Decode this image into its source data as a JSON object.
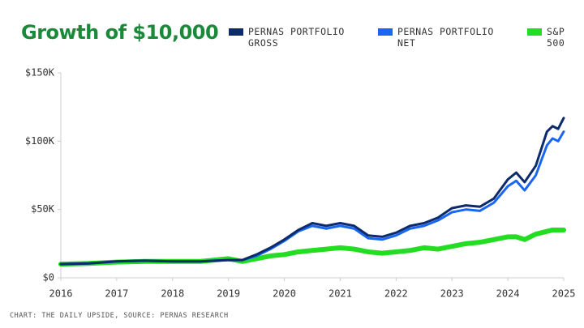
{
  "chart_data": {
    "type": "line",
    "title": "Growth of $10,000",
    "source": "CHART: THE DAILY UPSIDE, SOURCE: PERNAS RESEARCH",
    "x": [
      2016.0,
      2016.5,
      2017.0,
      2017.5,
      2018.0,
      2018.5,
      2019.0,
      2019.25,
      2019.5,
      2019.75,
      2020.0,
      2020.25,
      2020.5,
      2020.75,
      2021.0,
      2021.25,
      2021.5,
      2021.75,
      2022.0,
      2022.25,
      2022.5,
      2022.75,
      2023.0,
      2023.25,
      2023.5,
      2023.75,
      2024.0,
      2024.15,
      2024.3,
      2024.5,
      2024.7,
      2024.8,
      2024.9,
      2025.0
    ],
    "series": [
      {
        "name": "PERNAS PORTFOLIO GROSS",
        "color": "#0d2a6b",
        "values": [
          10000,
          10500,
          12000,
          12500,
          12000,
          12000,
          13000,
          13000,
          17000,
          22000,
          28000,
          35000,
          40000,
          38000,
          40000,
          38000,
          31000,
          30000,
          33000,
          38000,
          40000,
          44000,
          51000,
          53000,
          52000,
          58000,
          72000,
          77000,
          70000,
          82000,
          107000,
          111000,
          109000,
          117000
        ]
      },
      {
        "name": "PERNAS PORTFOLIO NET",
        "color": "#1a66f0",
        "values": [
          10000,
          10500,
          12000,
          12500,
          12000,
          12000,
          13000,
          13000,
          16000,
          21000,
          27000,
          34000,
          38000,
          36000,
          38000,
          36000,
          29000,
          28000,
          31000,
          36000,
          38000,
          42000,
          48000,
          50000,
          49000,
          55000,
          67000,
          71000,
          64000,
          75000,
          97000,
          102000,
          100000,
          107000
        ]
      },
      {
        "name": "S&P 500",
        "color": "#22dd22",
        "values": [
          10000,
          10500,
          11500,
          12000,
          12000,
          12000,
          14000,
          12000,
          14000,
          16000,
          17000,
          19000,
          20000,
          21000,
          22000,
          21000,
          19000,
          18000,
          19000,
          20000,
          22000,
          21000,
          23000,
          25000,
          26000,
          28000,
          30000,
          30000,
          28000,
          32000,
          34000,
          35000,
          35000,
          35000
        ]
      }
    ],
    "xlim": [
      2016,
      2025
    ],
    "xticks": [
      2016,
      2017,
      2018,
      2019,
      2020,
      2021,
      2022,
      2023,
      2024,
      2025
    ],
    "ylim": [
      0,
      150000
    ],
    "yticks": [
      {
        "value": 0,
        "label": "$0"
      },
      {
        "value": 50000,
        "label": "$50K"
      },
      {
        "value": 100000,
        "label": "$100K"
      },
      {
        "value": 150000,
        "label": "$150K"
      }
    ],
    "grid": false
  }
}
